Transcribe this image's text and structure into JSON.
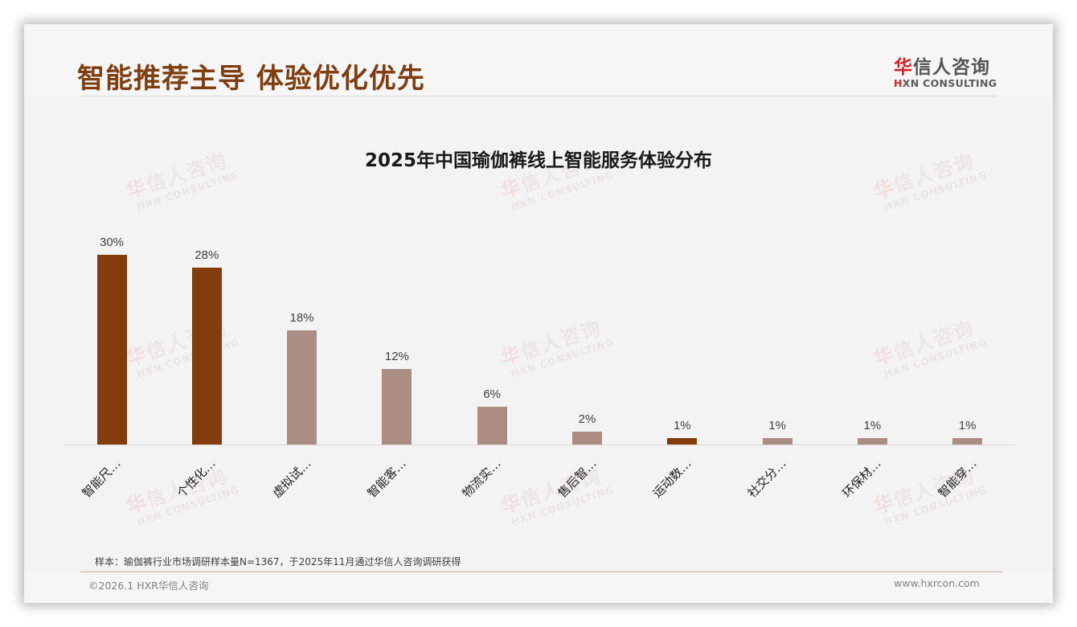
{
  "slide": {
    "title": "智能推荐主导 体验优化优先",
    "logo": {
      "cn_accent": "华",
      "cn_rest": "信人咨询",
      "en_accent": "H",
      "en_rest": "XN CONSULTING"
    },
    "watermark": {
      "cn_accent": "华",
      "cn_rest": "信人咨询",
      "en": "HXN CONSULTING"
    },
    "footnote": "样本：瑜伽裤行业市场调研样本量N=1367，于2025年11月通过华信人咨询调研获得",
    "copyright": "©2026.1 HXR华信人咨询",
    "website": "www.hxrcon.com"
  },
  "colors": {
    "title": "#7f3d10",
    "highlight_bar": "#843c0c",
    "normal_bar": "#ac8d84",
    "logo_red": "#d4202a"
  },
  "chart_data": {
    "type": "bar",
    "title": "2025年中国瑜伽裤线上智能服务体验分布",
    "xlabel": "",
    "ylabel": "",
    "ylim": [
      0,
      30
    ],
    "grid": false,
    "legend": "none",
    "categories": [
      "智能尺…",
      "个性化…",
      "虚拟试…",
      "智能客…",
      "物流实…",
      "售后智…",
      "运动数…",
      "社交分…",
      "环保材…",
      "智能穿…"
    ],
    "values": [
      30,
      28,
      18,
      12,
      6,
      2,
      1,
      1,
      1,
      1
    ],
    "value_labels": [
      "30%",
      "28%",
      "18%",
      "12%",
      "6%",
      "2%",
      "1%",
      "1%",
      "1%",
      "1%"
    ],
    "highlight": [
      true,
      true,
      false,
      false,
      false,
      false,
      true,
      false,
      false,
      false
    ],
    "unit": "%"
  }
}
